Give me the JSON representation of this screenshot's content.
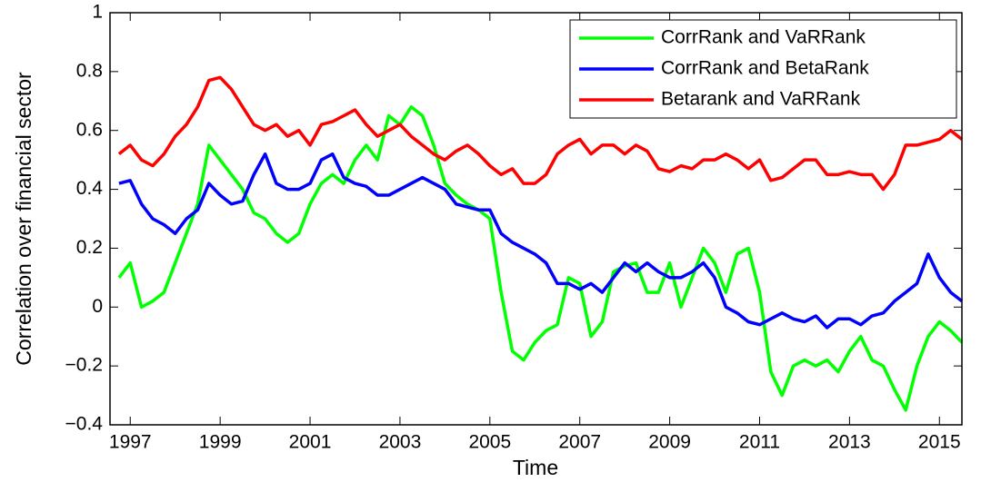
{
  "chart_data": {
    "type": "line",
    "x_label": "Time",
    "y_label": "Correlation over financial sector",
    "x": [
      1996.75,
      1997,
      1997.25,
      1997.5,
      1997.75,
      1998,
      1998.25,
      1998.5,
      1998.75,
      1999,
      1999.25,
      1999.5,
      1999.75,
      2000,
      2000.25,
      2000.5,
      2000.75,
      2001,
      2001.25,
      2001.5,
      2001.75,
      2002,
      2002.25,
      2002.5,
      2002.75,
      2003,
      2003.25,
      2003.5,
      2003.75,
      2004,
      2004.25,
      2004.5,
      2004.75,
      2005,
      2005.25,
      2005.5,
      2005.75,
      2006,
      2006.25,
      2006.5,
      2006.75,
      2007,
      2007.25,
      2007.5,
      2007.75,
      2008,
      2008.25,
      2008.5,
      2008.75,
      2009,
      2009.25,
      2009.5,
      2009.75,
      2010,
      2010.25,
      2010.5,
      2010.75,
      2011,
      2011.25,
      2011.5,
      2011.75,
      2012,
      2012.25,
      2012.5,
      2012.75,
      2013,
      2013.25,
      2013.5,
      2013.75,
      2014,
      2014.25,
      2014.5,
      2014.75,
      2015,
      2015.25,
      2015.5
    ],
    "series": [
      {
        "name": "CorrRank and VaRRank",
        "color": "#00ff00",
        "values": [
          0.1,
          0.15,
          0.0,
          0.02,
          0.05,
          0.15,
          0.25,
          0.35,
          0.55,
          0.5,
          0.45,
          0.4,
          0.32,
          0.3,
          0.25,
          0.22,
          0.25,
          0.35,
          0.42,
          0.45,
          0.42,
          0.5,
          0.55,
          0.5,
          0.65,
          0.62,
          0.68,
          0.65,
          0.55,
          0.42,
          0.38,
          0.35,
          0.33,
          0.3,
          0.05,
          -0.15,
          -0.18,
          -0.12,
          -0.08,
          -0.06,
          0.1,
          0.08,
          -0.1,
          -0.05,
          0.12,
          0.14,
          0.15,
          0.05,
          0.05,
          0.15,
          0.0,
          0.1,
          0.2,
          0.15,
          0.05,
          0.18,
          0.2,
          0.05,
          -0.22,
          -0.3,
          -0.2,
          -0.18,
          -0.2,
          -0.18,
          -0.22,
          -0.15,
          -0.1,
          -0.18,
          -0.2,
          -0.28,
          -0.35,
          -0.2,
          -0.1,
          -0.05,
          -0.08,
          -0.12
        ]
      },
      {
        "name": "CorrRank and BetaRank",
        "color": "#0000ff",
        "values": [
          0.42,
          0.43,
          0.35,
          0.3,
          0.28,
          0.25,
          0.3,
          0.33,
          0.42,
          0.38,
          0.35,
          0.36,
          0.45,
          0.52,
          0.42,
          0.4,
          0.4,
          0.42,
          0.5,
          0.52,
          0.44,
          0.42,
          0.41,
          0.38,
          0.38,
          0.4,
          0.42,
          0.44,
          0.42,
          0.4,
          0.35,
          0.34,
          0.33,
          0.33,
          0.25,
          0.22,
          0.2,
          0.18,
          0.15,
          0.08,
          0.08,
          0.06,
          0.08,
          0.05,
          0.1,
          0.15,
          0.12,
          0.15,
          0.12,
          0.1,
          0.1,
          0.12,
          0.15,
          0.1,
          0.0,
          -0.02,
          -0.05,
          -0.06,
          -0.04,
          -0.02,
          -0.04,
          -0.05,
          -0.03,
          -0.07,
          -0.04,
          -0.04,
          -0.06,
          -0.03,
          -0.02,
          0.02,
          0.05,
          0.08,
          0.18,
          0.1,
          0.05,
          0.02
        ]
      },
      {
        "name": "Betarank and VaRRank",
        "color": "#ff0000",
        "values": [
          0.52,
          0.55,
          0.5,
          0.48,
          0.52,
          0.58,
          0.62,
          0.68,
          0.77,
          0.78,
          0.74,
          0.68,
          0.62,
          0.6,
          0.62,
          0.58,
          0.6,
          0.55,
          0.62,
          0.63,
          0.65,
          0.67,
          0.62,
          0.58,
          0.6,
          0.62,
          0.58,
          0.55,
          0.52,
          0.5,
          0.53,
          0.55,
          0.52,
          0.48,
          0.45,
          0.47,
          0.42,
          0.42,
          0.45,
          0.52,
          0.55,
          0.57,
          0.52,
          0.55,
          0.55,
          0.52,
          0.55,
          0.53,
          0.47,
          0.46,
          0.48,
          0.47,
          0.5,
          0.5,
          0.52,
          0.5,
          0.47,
          0.5,
          0.43,
          0.44,
          0.47,
          0.5,
          0.5,
          0.45,
          0.45,
          0.46,
          0.45,
          0.45,
          0.4,
          0.45,
          0.55,
          0.55,
          0.56,
          0.57,
          0.6,
          0.57
        ]
      }
    ],
    "xlim": [
      1996.55,
      2015.5
    ],
    "xticks": [
      1997,
      1999,
      2001,
      2003,
      2005,
      2007,
      2009,
      2011,
      2013,
      2015
    ],
    "ylim": [
      -0.4,
      1
    ],
    "yticks": [
      {
        "value": -0.4,
        "label": "−0.4"
      },
      {
        "value": -0.2,
        "label": "−0.2"
      },
      0,
      0.2,
      0.4,
      0.6,
      0.8,
      1
    ],
    "legend": "upper right"
  }
}
